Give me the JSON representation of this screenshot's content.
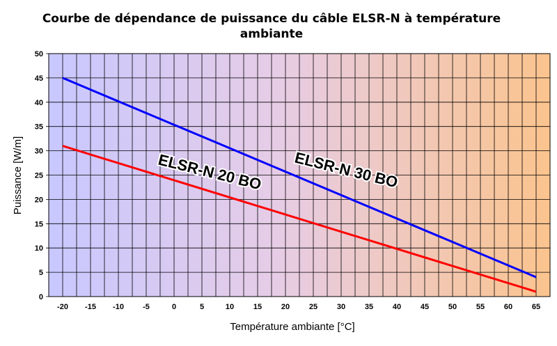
{
  "chart_data": {
    "type": "line",
    "title": "Courbe de dépendance de puissance du câble ELSR-N à température ambiante",
    "xlabel": "Température ambiante   [°C]",
    "ylabel": "Puissance   [W/m]",
    "x_ticks": [
      "-20",
      "-15",
      "-10",
      "-5",
      "0",
      "5",
      "10",
      "15",
      "20",
      "25",
      "30",
      "35",
      "40",
      "45",
      "50",
      "55",
      "60",
      "65"
    ],
    "y_ticks": [
      "0",
      "5",
      "10",
      "15",
      "20",
      "25",
      "30",
      "35",
      "40",
      "45",
      "50"
    ],
    "xlim": [
      -22.5,
      67.5
    ],
    "ylim": [
      0,
      50
    ],
    "grid": true,
    "background": "horizontal gradient from lavender/blue (cold) to orange (warm)",
    "series": [
      {
        "name": "ELSR-N 20 BO",
        "color": "#ff0000",
        "x": [
          -20,
          65
        ],
        "y": [
          31,
          1
        ]
      },
      {
        "name": "ELSR-N 30 BO",
        "color": "#0000ff",
        "x": [
          -20,
          65
        ],
        "y": [
          45,
          4
        ]
      }
    ]
  }
}
